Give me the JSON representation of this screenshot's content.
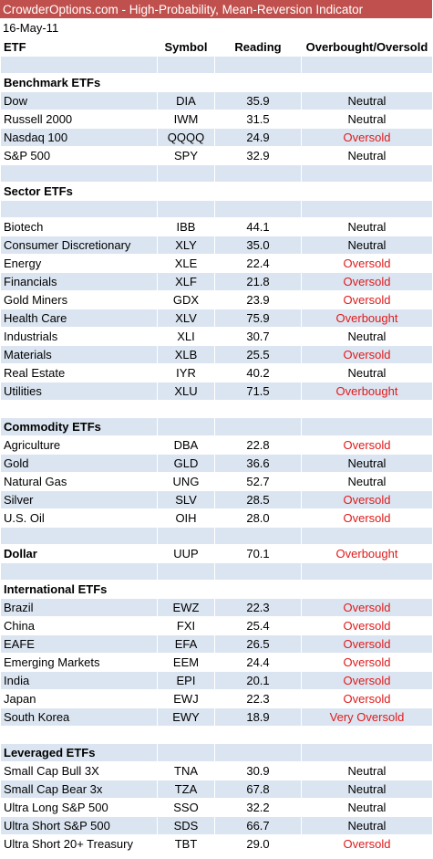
{
  "title": "CrowderOptions.com - High-Probability, Mean-Reversion Indicator",
  "date": "16-May-11",
  "columns": [
    "ETF",
    "Symbol",
    "Reading",
    "Overbought/Oversold"
  ],
  "colors": {
    "title_bar": "#c0504d",
    "band": "#dbe5f1",
    "alert": "#e01a1a"
  },
  "rows": [
    {
      "kind": "blank",
      "bg": "blue"
    },
    {
      "kind": "section",
      "label": "Benchmark ETFs",
      "bg": "white"
    },
    {
      "kind": "data",
      "etf": "Dow",
      "symbol": "DIA",
      "reading": "35.9",
      "status": "Neutral",
      "bg": "blue"
    },
    {
      "kind": "data",
      "etf": "Russell 2000",
      "symbol": "IWM",
      "reading": "31.5",
      "status": "Neutral",
      "bg": "white"
    },
    {
      "kind": "data",
      "etf": "Nasdaq 100",
      "symbol": "QQQQ",
      "reading": "24.9",
      "status": "Oversold",
      "bg": "blue"
    },
    {
      "kind": "data",
      "etf": "S&P 500",
      "symbol": "SPY",
      "reading": "32.9",
      "status": "Neutral",
      "bg": "white"
    },
    {
      "kind": "blank",
      "bg": "blue"
    },
    {
      "kind": "section",
      "label": "Sector ETFs",
      "bg": "white"
    },
    {
      "kind": "blank",
      "bg": "blue"
    },
    {
      "kind": "data",
      "etf": "Biotech",
      "symbol": "IBB",
      "reading": "44.1",
      "status": "Neutral",
      "bg": "white"
    },
    {
      "kind": "data",
      "etf": "Consumer Discretionary",
      "symbol": "XLY",
      "reading": "35.0",
      "status": "Neutral",
      "bg": "blue"
    },
    {
      "kind": "data",
      "etf": "Energy",
      "symbol": "XLE",
      "reading": "22.4",
      "status": "Oversold",
      "bg": "white"
    },
    {
      "kind": "data",
      "etf": "Financials",
      "symbol": "XLF",
      "reading": "21.8",
      "status": "Oversold",
      "bg": "blue"
    },
    {
      "kind": "data",
      "etf": "Gold Miners",
      "symbol": "GDX",
      "reading": "23.9",
      "status": "Oversold",
      "bg": "white"
    },
    {
      "kind": "data",
      "etf": "Health Care",
      "symbol": "XLV",
      "reading": "75.9",
      "status": "Overbought",
      "bg": "blue"
    },
    {
      "kind": "data",
      "etf": "Industrials",
      "symbol": "XLI",
      "reading": "30.7",
      "status": "Neutral",
      "bg": "white"
    },
    {
      "kind": "data",
      "etf": "Materials",
      "symbol": "XLB",
      "reading": "25.5",
      "status": "Oversold",
      "bg": "blue"
    },
    {
      "kind": "data",
      "etf": "Real Estate",
      "symbol": "IYR",
      "reading": "40.2",
      "status": "Neutral",
      "bg": "white"
    },
    {
      "kind": "data",
      "etf": "Utilities",
      "symbol": "XLU",
      "reading": "71.5",
      "status": "Overbought",
      "bg": "blue"
    },
    {
      "kind": "blank",
      "bg": "white"
    },
    {
      "kind": "section",
      "label": "Commodity ETFs",
      "bg": "blue"
    },
    {
      "kind": "data",
      "etf": "Agriculture",
      "symbol": "DBA",
      "reading": "22.8",
      "status": "Oversold",
      "bg": "white"
    },
    {
      "kind": "data",
      "etf": "Gold",
      "symbol": "GLD",
      "reading": "36.6",
      "status": "Neutral",
      "bg": "blue"
    },
    {
      "kind": "data",
      "etf": "Natural Gas",
      "symbol": "UNG",
      "reading": "52.7",
      "status": "Neutral",
      "bg": "white"
    },
    {
      "kind": "data",
      "etf": "Silver",
      "symbol": "SLV",
      "reading": "28.5",
      "status": "Oversold",
      "bg": "blue"
    },
    {
      "kind": "data",
      "etf": "U.S. Oil",
      "symbol": "OIH",
      "reading": "28.0",
      "status": "Oversold",
      "bg": "white"
    },
    {
      "kind": "blank",
      "bg": "blue"
    },
    {
      "kind": "data",
      "etf": "Dollar",
      "symbol": "UUP",
      "reading": "70.1",
      "status": "Overbought",
      "bg": "white",
      "bold": true
    },
    {
      "kind": "blank",
      "bg": "blue"
    },
    {
      "kind": "section",
      "label": "International ETFs",
      "bg": "white"
    },
    {
      "kind": "data",
      "etf": "Brazil",
      "symbol": "EWZ",
      "reading": "22.3",
      "status": "Oversold",
      "bg": "blue"
    },
    {
      "kind": "data",
      "etf": "China",
      "symbol": "FXI",
      "reading": "25.4",
      "status": "Oversold",
      "bg": "white"
    },
    {
      "kind": "data",
      "etf": "EAFE",
      "symbol": "EFA",
      "reading": "26.5",
      "status": "Oversold",
      "bg": "blue"
    },
    {
      "kind": "data",
      "etf": "Emerging Markets",
      "symbol": "EEM",
      "reading": "24.4",
      "status": "Oversold",
      "bg": "white"
    },
    {
      "kind": "data",
      "etf": "India",
      "symbol": "EPI",
      "reading": "20.1",
      "status": "Oversold",
      "bg": "blue"
    },
    {
      "kind": "data",
      "etf": "Japan",
      "symbol": "EWJ",
      "reading": "22.3",
      "status": "Oversold",
      "bg": "white"
    },
    {
      "kind": "data",
      "etf": "South Korea",
      "symbol": "EWY",
      "reading": "18.9",
      "status": "Very Oversold",
      "bg": "blue"
    },
    {
      "kind": "blank",
      "bg": "white"
    },
    {
      "kind": "section",
      "label": "Leveraged ETFs",
      "bg": "blue"
    },
    {
      "kind": "data",
      "etf": "Small Cap Bull 3X",
      "symbol": "TNA",
      "reading": "30.9",
      "status": "Neutral",
      "bg": "white"
    },
    {
      "kind": "data",
      "etf": "Small Cap Bear 3x",
      "symbol": "TZA",
      "reading": "67.8",
      "status": "Neutral",
      "bg": "blue"
    },
    {
      "kind": "data",
      "etf": "Ultra Long S&P 500",
      "symbol": "SSO",
      "reading": "32.2",
      "status": "Neutral",
      "bg": "white"
    },
    {
      "kind": "data",
      "etf": "Ultra Short S&P 500",
      "symbol": "SDS",
      "reading": "66.7",
      "status": "Neutral",
      "bg": "blue"
    },
    {
      "kind": "data",
      "etf": "Ultra Short 20+ Treasury",
      "symbol": "TBT",
      "reading": "29.0",
      "status": "Oversold",
      "bg": "white"
    }
  ]
}
